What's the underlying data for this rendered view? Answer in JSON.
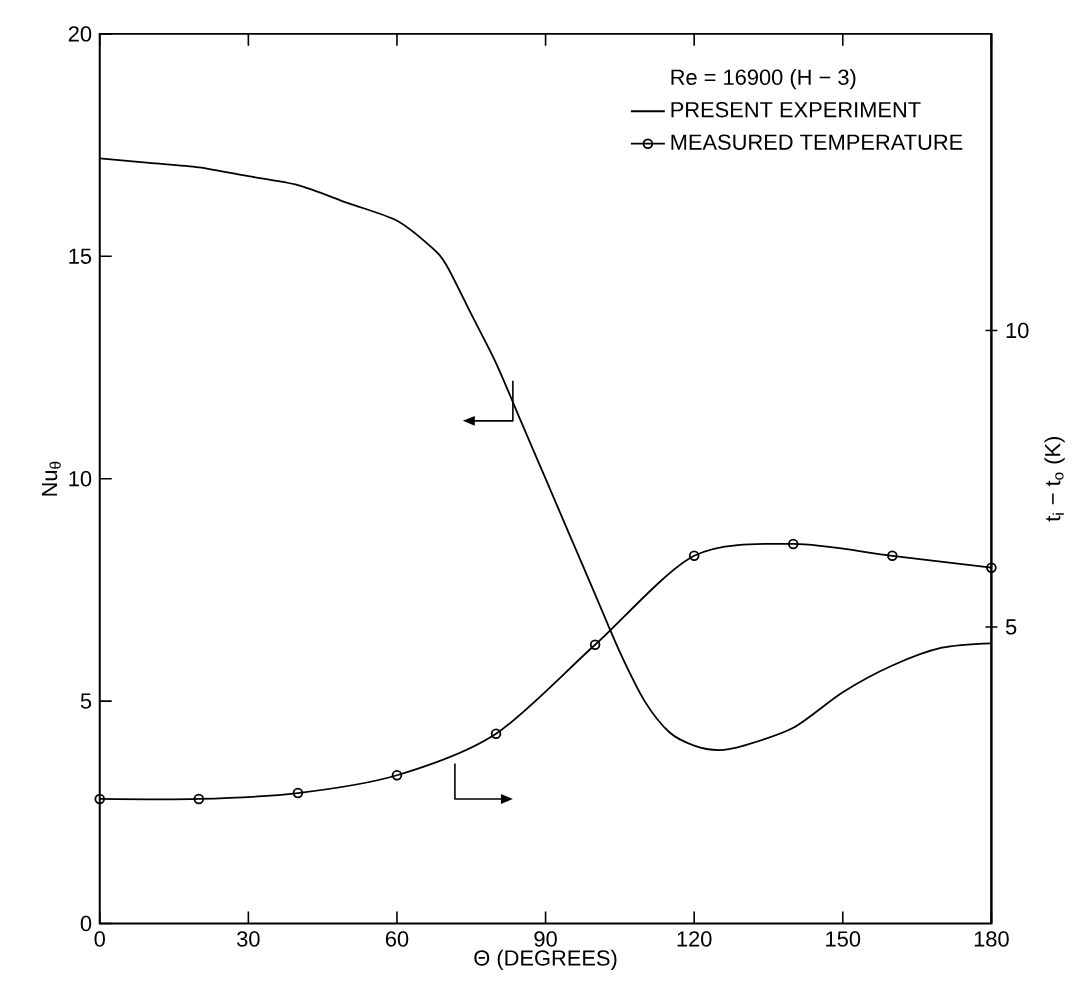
{
  "chart_data": {
    "type": "line",
    "xlabel": "Θ (DEGREES)",
    "ylabel": "Nu$_{θ}$",
    "y2label": "t$_{i}$ − t$_{o}$ (K)",
    "legend_title": "Re = 16900 (H − 3)",
    "legend": "top right",
    "grid": false,
    "line_style": "solid",
    "xlim": [
      0,
      180
    ],
    "xticks": [
      0,
      30,
      60,
      90,
      120,
      150,
      180
    ],
    "ylim": [
      0,
      20
    ],
    "yticks": [
      0,
      5,
      10,
      15,
      20
    ],
    "y2lim": [
      0,
      15
    ],
    "y2ticks": [
      5,
      10
    ],
    "series": [
      {
        "name": "PRESENT EXPERIMENT",
        "color": "#000000",
        "marker": "none",
        "x": [
          0,
          10,
          20,
          30,
          40,
          50,
          60,
          67,
          70,
          75,
          80,
          85,
          90,
          95,
          100,
          105,
          110,
          115,
          120,
          125,
          130,
          140,
          150,
          160,
          170,
          180
        ],
        "values": [
          17.2,
          17.1,
          17.0,
          16.8,
          16.6,
          16.2,
          15.8,
          15.2,
          14.8,
          13.7,
          12.6,
          11.3,
          10.0,
          8.7,
          7.4,
          6.1,
          5.0,
          4.3,
          4.0,
          3.9,
          4.0,
          4.4,
          5.2,
          5.8,
          6.2,
          6.3
        ]
      },
      {
        "name": "MEASURED TEMPERATURE",
        "color": "#000000",
        "marker": "circle",
        "axis": "y2",
        "x": [
          0,
          20,
          40,
          60,
          80,
          100,
          120,
          140,
          160,
          180
        ],
        "values": [
          2.1,
          2.1,
          2.2,
          2.5,
          3.2,
          4.7,
          6.2,
          6.4,
          6.2,
          6.0
        ]
      }
    ]
  }
}
